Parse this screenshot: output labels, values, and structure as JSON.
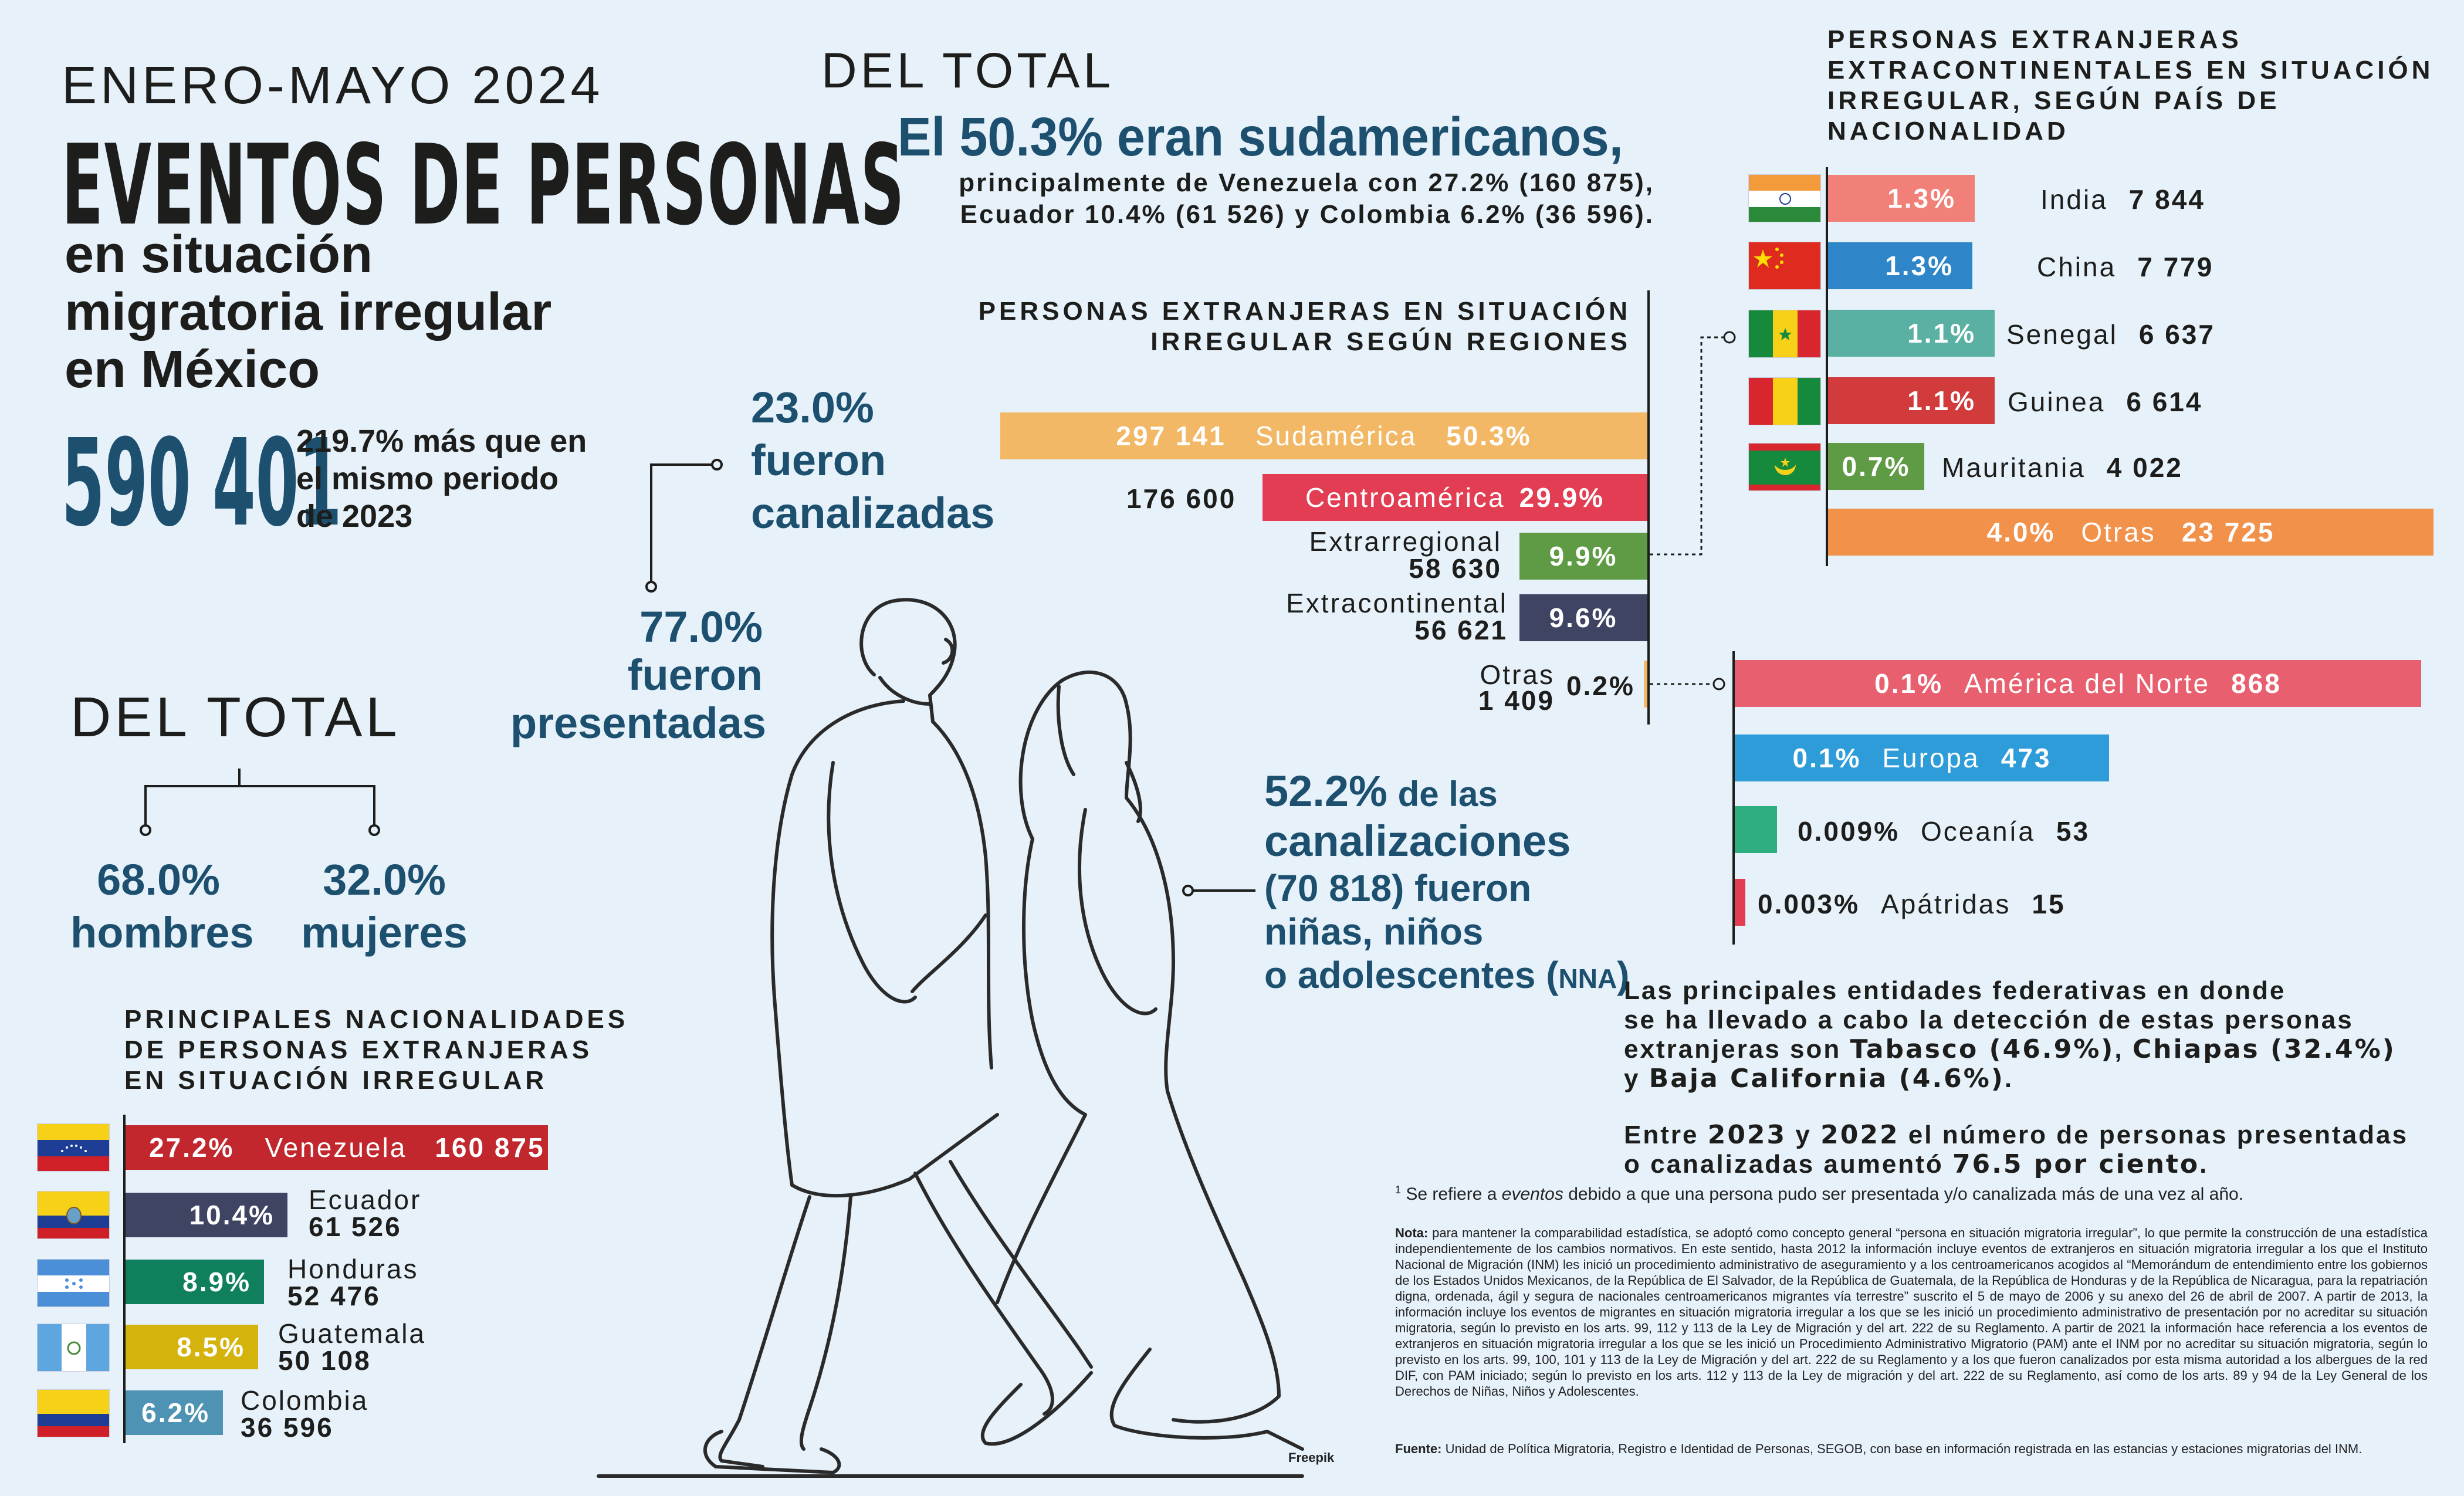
{
  "header": {
    "period": "ENERO-MAYO 2024",
    "title_line1": "EVENTOS DE PERSONAS",
    "title_line2": "en situación",
    "title_line3": "migratoria irregular",
    "title_line4": "en México"
  },
  "total": {
    "value": "590 401",
    "compare_line1": "219.7% más que en",
    "compare_line2": "el mismo periodo",
    "compare_line3": "de 2023"
  },
  "canalizadas": {
    "pct": "23.0%",
    "line1": "fueron",
    "line2": "canalizadas"
  },
  "presentadas": {
    "pct": "77.0%",
    "line1": "fueron",
    "line2": "presentadas"
  },
  "gender": {
    "heading": "DEL TOTAL",
    "men_pct": "68.0%",
    "men_label": "hombres",
    "women_pct": "32.0%",
    "women_label": "mujeres"
  },
  "nationalities": {
    "heading_line1": "PRINCIPALES NACIONALIDADES",
    "heading_line2": "DE PERSONAS EXTRANJERAS",
    "heading_line3": "EN SITUACIÓN IRREGULAR",
    "rows": [
      {
        "pct": "27.2%",
        "name": "Venezuela",
        "count": "160 875",
        "color": "#c1272d"
      },
      {
        "pct": "10.4%",
        "name": "Ecuador",
        "count": "61 526",
        "color": "#3f4463"
      },
      {
        "pct": "8.9%",
        "name": "Honduras",
        "count": "52 476",
        "color": "#0f7f5e"
      },
      {
        "pct": "8.5%",
        "name": "Guatemala",
        "count": "50 108",
        "color": "#d4b30c"
      },
      {
        "pct": "6.2%",
        "name": "Colombia",
        "count": "36 596",
        "color": "#4f93b4"
      }
    ]
  },
  "sudamericanos": {
    "heading": "DEL TOTAL",
    "headline": "El 50.3% eran sudamericanos,",
    "detail_line1": "principalmente de Venezuela con 27.2% (160 875),",
    "detail_line2": "Ecuador 10.4% (61 526) y Colombia 6.2% (36 596)."
  },
  "regions": {
    "heading_line1": "PERSONAS EXTRANJERAS EN SITUACIÓN",
    "heading_line2": "IRREGULAR SEGÚN REGIONES",
    "sud_count": "297 141",
    "sud_name": "Sudamérica",
    "sud_pct": "50.3%",
    "cen_count": "176 600",
    "cen_name": "Centroamérica",
    "cen_pct": "29.9%",
    "extrar_name": "Extrarregional",
    "extrar_count": "58 630",
    "extrar_pct": "9.9%",
    "extrac_name": "Extracontinental",
    "extrac_count": "56 621",
    "extrac_pct": "9.6%",
    "otras_name": "Otras",
    "otras_count": "1 409",
    "otras_pct": "0.2%"
  },
  "extracontinental": {
    "heading_line1": "PERSONAS EXTRANJERAS",
    "heading_line2": "EXTRACONTINENTALES EN SITUACIÓN",
    "heading_line3": "IRREGULAR, SEGÚN PAÍS DE",
    "heading_line4": "NACIONALIDAD",
    "rows": [
      {
        "pct": "1.3%",
        "name": "India",
        "count": "7 844",
        "color": "#f08078"
      },
      {
        "pct": "1.3%",
        "name": "China",
        "count": "7 779",
        "color": "#2e86c8"
      },
      {
        "pct": "1.1%",
        "name": "Senegal",
        "count": "6 637",
        "color": "#5ab1a3"
      },
      {
        "pct": "1.1%",
        "name": "Guinea",
        "count": "6 614",
        "color": "#d13b3c"
      },
      {
        "pct": "0.7%",
        "name": "Mauritania",
        "count": "4 022",
        "color": "#5f9b45"
      }
    ],
    "otras_pct": "4.0%",
    "otras_name": "Otras",
    "otras_count": "23 725"
  },
  "otras_regiones": {
    "norte_pct": "0.1%",
    "norte_name": "América del Norte",
    "norte_count": "868",
    "europa_pct": "0.1%",
    "europa_name": "Europa",
    "europa_count": "473",
    "oceania_pct": "0.009%",
    "oceania_name": "Oceanía",
    "oceania_count": "53",
    "apatridas_pct": "0.003%",
    "apatridas_name": "Apátridas",
    "apatridas_count": "15"
  },
  "nna": {
    "pct": "52.2%",
    "line1_rest": "de las",
    "line2": "canalizaciones",
    "line3": "(70 818) fueron",
    "line4": "niñas, niños",
    "line5_a": "o adolescentes (",
    "line5_b": "NNA",
    "line5_c": ")"
  },
  "entidades": {
    "p1_line1": "Las principales entidades federativas en donde",
    "p1_line2": "se ha llevado a cabo la detección de estas personas",
    "p1_line3a": "extranjeras son ",
    "p1_line3b": "Tabasco (46.9%)",
    "p1_line3c": ", ",
    "p1_line3d": "Chiapas (32.4%)",
    "p1_line4a": "y ",
    "p1_line4b": "Baja California (4.6%)",
    "p1_line4c": ".",
    "p2_line1a": "Entre ",
    "p2_line1b": "2023",
    "p2_line1c": " y ",
    "p2_line1d": "2022",
    "p2_line1e": " el número de personas presentadas",
    "p2_line2a": "o canalizadas aumentó ",
    "p2_line2b": "76.5 por ciento",
    "p2_line2c": "."
  },
  "footnotes": {
    "f1_sup": "1",
    "f1_a": " Se refiere a ",
    "f1_b": "eventos",
    "f1_c": " debido a que una persona pudo ser presentada y/o canalizada más de una vez al año.",
    "nota_label": "Nota:",
    "nota_text": "para mantener la comparabilidad estadística, se adoptó como concepto general “persona en situación migratoria irregular”, lo que permite la construcción de una estadística independientemente de los cambios normativos. En este sentido, hasta 2012 la información incluye eventos de extranjeros en situación migratoria irregular a los que el Instituto Nacional de Migración (INM) les inició un procedimiento administrativo de aseguramiento y a los centroamericanos acogidos al “Memorándum de entendimiento entre los gobiernos de los Estados Unidos Mexicanos, de la República de El Salvador, de la República de Guatemala, de la República de Honduras y de la República de Nicaragua, para la repatriación digna, ordenada, ágil y segura de nacionales centroamericanos migrantes vía terrestre” suscrito el 5 de mayo de 2006 y su anexo del 26 de abril de 2007. A partir de 2013, la información incluye los eventos de migrantes en situación migratoria irregular a los que se les inició un procedimiento administrativo de presentación por no acreditar su situación migratoria, según lo previsto en los arts. 99, 112 y 113 de la Ley de Migración y del art. 222 de su Reglamento. A partir de 2021 la información hace referencia a los eventos de extranjeros en situación migratoria irregular a los que se les inició un Procedimiento Administrativo Migratorio (PAM) ante el INM por no acreditar su situación migratoria, según lo previsto en los arts. 99, 100, 101 y 113 de la Ley de Migración y del art. 222 de su Reglamento y a los que fueron canalizados por esta misma autoridad a los albergues de la red DIF, con PAM iniciado; según lo previsto en los arts. 112 y 113 de la Ley de migración y del art. 222 de su Reglamento, así como de los arts. 89 y 94 de la Ley General de los Derechos de Niñas, Niños y Adolescentes.",
    "fuente_label": "Fuente:",
    "fuente_text": "Unidad de Política Migratoria, Registro e Identidad de Personas, SEGOB, con base en información registrada en las estancias y estaciones migratorias del INM."
  },
  "credit": "Freepik"
}
